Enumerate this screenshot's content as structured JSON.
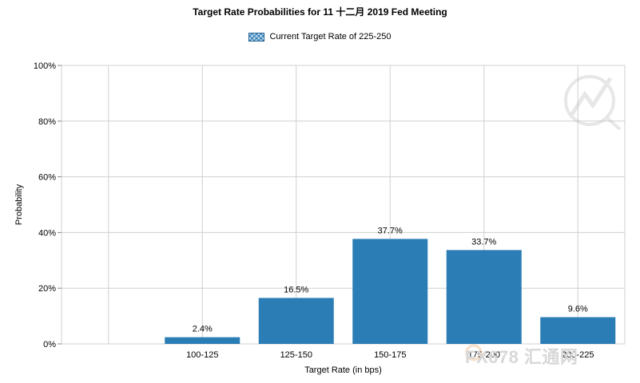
{
  "chart_data": {
    "type": "bar",
    "title": "Target Rate Probabilities for 11 十二月 2019 Fed Meeting",
    "legend": {
      "label": "Current Target Rate of 225-250",
      "placement": "top-center"
    },
    "xlabel": "Target Rate (in bps)",
    "ylabel": "Probability",
    "categories": [
      "100-125",
      "125-150",
      "150-175",
      "175-200",
      "200-225"
    ],
    "values": [
      2.4,
      16.5,
      37.7,
      33.7,
      9.6
    ],
    "data_labels": [
      "2.4%",
      "16.5%",
      "37.7%",
      "33.7%",
      "9.6%"
    ],
    "ylim": [
      0,
      100
    ],
    "yticks": [
      "0%",
      "20%",
      "40%",
      "60%",
      "80%",
      "100%"
    ],
    "grid": true,
    "bar_color": "#2b7db6",
    "grid_color": "#d0d0d0"
  },
  "watermark": {
    "text": "FX678 汇通网"
  }
}
